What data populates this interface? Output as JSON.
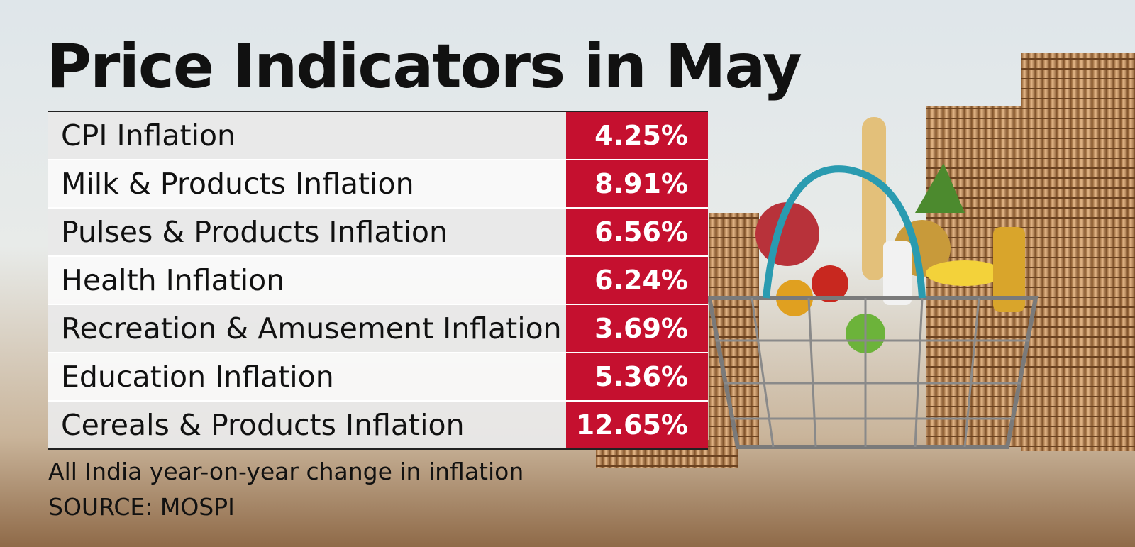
{
  "header": {
    "title": "Price Indicators in May"
  },
  "table": {
    "rows": [
      [
        "CPI Inflation",
        "4.25%"
      ],
      [
        "Milk & Products Inflation",
        "8.91%"
      ],
      [
        "Pulses & Products Inflation",
        "6.56%"
      ],
      [
        "Health Inflation",
        "6.24%"
      ],
      [
        "Recreation & Amusement Inflation",
        "3.69%"
      ],
      [
        "Education Inflation",
        "5.36%"
      ],
      [
        "Cereals & Products Inflation",
        "12.65%"
      ]
    ]
  },
  "footer": {
    "note": "All India year-on-year change in inflation",
    "source": "SOURCE: MOSPI"
  }
}
